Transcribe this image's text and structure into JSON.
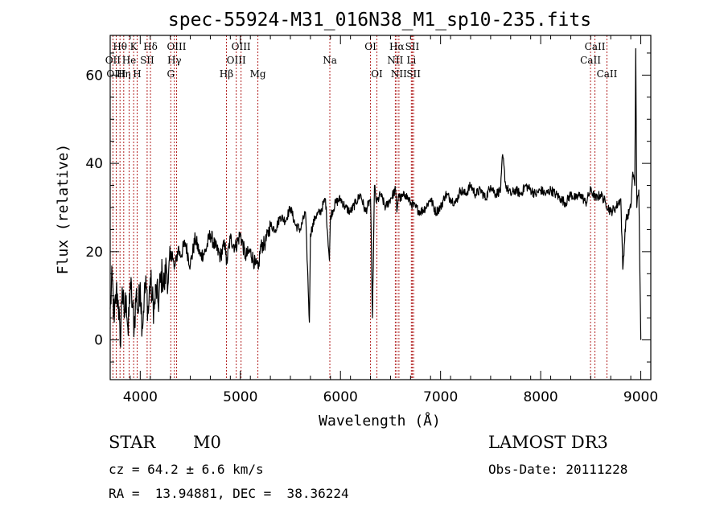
{
  "chart_data": {
    "type": "line",
    "title": "spec-55924-M31_016N38_M1_sp10-235.fits",
    "xlabel": "Wavelength (Å)",
    "ylabel": "Flux (relative)",
    "xlim": [
      3700,
      9100
    ],
    "ylim": [
      -9,
      69
    ],
    "xticks": [
      4000,
      5000,
      6000,
      7000,
      8000,
      9000
    ],
    "xtick_labels": [
      "4000",
      "5000",
      "6000",
      "7000",
      "8000",
      "9000"
    ],
    "yticks": [
      0,
      20,
      40,
      60
    ],
    "ytick_labels": [
      "0",
      "20",
      "40",
      "60"
    ],
    "series": [
      {
        "name": "flux",
        "x": [
          3700,
          3720,
          3740,
          3760,
          3780,
          3800,
          3820,
          3840,
          3860,
          3880,
          3900,
          3920,
          3940,
          3960,
          3980,
          4000,
          4020,
          4040,
          4060,
          4080,
          4100,
          4120,
          4140,
          4160,
          4180,
          4200,
          4220,
          4240,
          4260,
          4280,
          4300,
          4320,
          4340,
          4360,
          4380,
          4400,
          4450,
          4500,
          4550,
          4600,
          4650,
          4700,
          4750,
          4800,
          4850,
          4860,
          4900,
          4950,
          5000,
          5050,
          5100,
          5150,
          5180,
          5200,
          5250,
          5300,
          5350,
          5400,
          5450,
          5500,
          5550,
          5600,
          5650,
          5690,
          5700,
          5750,
          5800,
          5850,
          5890,
          5900,
          5950,
          6000,
          6050,
          6100,
          6150,
          6200,
          6250,
          6300,
          6320,
          6340,
          6360,
          6400,
          6450,
          6500,
          6550,
          6563,
          6580,
          6600,
          6650,
          6700,
          6750,
          6800,
          6850,
          6900,
          6950,
          7000,
          7050,
          7100,
          7150,
          7200,
          7250,
          7300,
          7350,
          7400,
          7450,
          7500,
          7550,
          7600,
          7620,
          7650,
          7700,
          7750,
          7800,
          7850,
          7900,
          7950,
          8000,
          8050,
          8100,
          8150,
          8200,
          8250,
          8300,
          8350,
          8400,
          8450,
          8500,
          8550,
          8600,
          8650,
          8700,
          8750,
          8800,
          8820,
          8850,
          8900,
          8920,
          8940,
          8950,
          8960,
          8980,
          9000
        ],
        "y": [
          7,
          14,
          4,
          11,
          9,
          -1,
          12,
          5,
          10,
          1,
          13,
          8,
          3,
          11,
          6,
          13,
          3,
          10,
          12,
          6,
          14,
          9,
          7,
          12,
          8,
          13,
          15,
          12,
          17,
          13,
          18,
          20,
          16,
          18,
          21,
          19,
          22,
          17,
          23,
          19,
          20,
          24,
          21,
          19,
          22,
          17,
          23,
          21,
          24,
          19,
          20,
          17,
          16,
          21,
          22,
          26,
          25,
          28,
          27,
          30,
          26,
          25,
          29,
          4,
          24,
          28,
          29,
          32,
          18,
          28,
          31,
          32,
          30,
          29,
          31,
          33,
          29,
          32,
          5,
          35,
          31,
          33,
          30,
          32,
          34,
          29,
          33,
          32,
          33,
          31,
          30,
          29,
          30,
          32,
          29,
          30,
          33,
          32,
          31,
          34,
          33,
          35,
          33,
          34,
          32,
          35,
          33,
          34,
          42,
          35,
          33,
          34,
          33,
          35,
          34,
          33,
          34,
          33,
          34,
          33,
          32,
          31,
          33,
          32,
          33,
          31,
          34,
          32,
          33,
          31,
          29,
          30,
          32,
          16,
          27,
          30,
          38,
          35,
          66,
          30,
          34,
          0
        ]
      }
    ],
    "spectral_lines": [
      {
        "label": "Hθ",
        "wavelength": 3798,
        "row": 1
      },
      {
        "label": "OII",
        "wavelength": 3727,
        "row": 2
      },
      {
        "label": "OIII",
        "wavelength": 3760,
        "row": 3
      },
      {
        "label": "K",
        "wavelength": 3934,
        "row": 1
      },
      {
        "label": "He",
        "wavelength": 3889,
        "row": 2
      },
      {
        "label": "Hη",
        "wavelength": 3835,
        "row": 3
      },
      {
        "label": "SII",
        "wavelength": 4069,
        "row": 2
      },
      {
        "label": "H",
        "wavelength": 3969,
        "row": 3
      },
      {
        "label": "Hδ",
        "wavelength": 4102,
        "row": 1
      },
      {
        "label": "OIII",
        "wavelength": 4363,
        "row": 1
      },
      {
        "label": "Hγ",
        "wavelength": 4341,
        "row": 2
      },
      {
        "label": "G",
        "wavelength": 4305,
        "row": 3
      },
      {
        "label": "Hβ",
        "wavelength": 4861,
        "row": 3
      },
      {
        "label": "OIII",
        "wavelength": 5007,
        "row": 1
      },
      {
        "label": "OIII",
        "wavelength": 4959,
        "row": 2
      },
      {
        "label": "Mg",
        "wavelength": 5175,
        "row": 3
      },
      {
        "label": "Na",
        "wavelength": 5894,
        "row": 2
      },
      {
        "label": "OI",
        "wavelength": 6300,
        "row": 1
      },
      {
        "label": "OI",
        "wavelength": 6364,
        "row": 3
      },
      {
        "label": "Hα",
        "wavelength": 6563,
        "row": 1
      },
      {
        "label": "NII",
        "wavelength": 6548,
        "row": 2
      },
      {
        "label": "NII",
        "wavelength": 6584,
        "row": 3
      },
      {
        "label": "SII",
        "wavelength": 6717,
        "row": 1
      },
      {
        "label": "Li",
        "wavelength": 6708,
        "row": 2
      },
      {
        "label": "SII",
        "wavelength": 6731,
        "row": 3
      },
      {
        "label": "CaII",
        "wavelength": 8542,
        "row": 1
      },
      {
        "label": "CaII",
        "wavelength": 8498,
        "row": 2
      },
      {
        "label": "CaII",
        "wavelength": 8662,
        "row": 3
      }
    ]
  },
  "info": {
    "object_class": "STAR",
    "subclass": "M0",
    "survey": "LAMOST DR3",
    "cz": "cz = 64.2 ± 6.6 km/s",
    "obs_date": "Obs-Date: 20111228",
    "coords": "RA =  13.94881, DEC =  38.36224"
  },
  "colors": {
    "line_marker": "#b22222",
    "spectrum": "#000000",
    "axes": "#000000"
  }
}
